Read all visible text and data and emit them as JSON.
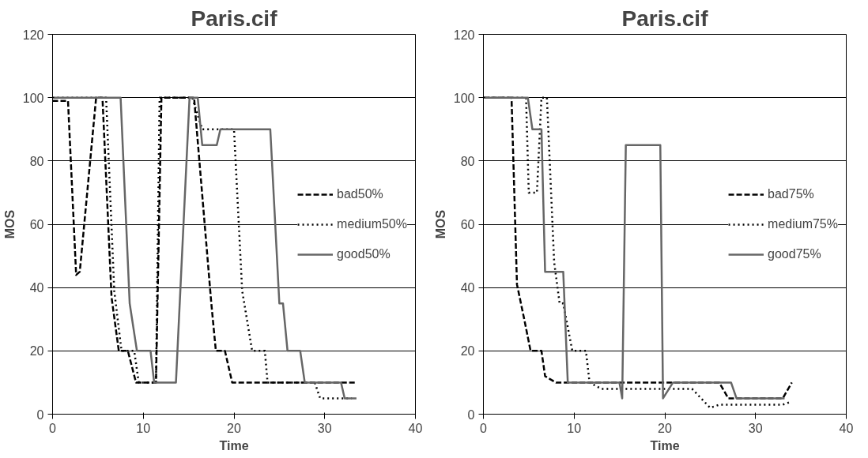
{
  "chart_data": [
    {
      "type": "line",
      "title": "Paris.cif",
      "xlabel": "Time",
      "ylabel": "MOS",
      "xlim": [
        0,
        40
      ],
      "ylim": [
        0,
        120
      ],
      "xticks": [
        0,
        10,
        20,
        30,
        40
      ],
      "yticks": [
        0,
        20,
        40,
        60,
        80,
        100,
        120
      ],
      "grid": "y",
      "legend": "right",
      "marker": "none",
      "series": [
        {
          "name": "bad50%",
          "color": "#000000",
          "line_style": "dashed",
          "x": [
            0,
            1.7,
            2.6,
            3.0,
            4.8,
            5.5,
            6.5,
            7.3,
            8.3,
            9.2,
            11.4,
            12.0,
            15.6,
            17.5,
            18.0,
            19.0,
            19.8,
            33.5
          ],
          "values": [
            99,
            99,
            44,
            45,
            100,
            100,
            37,
            20,
            20,
            10,
            10,
            100,
            100,
            35,
            20,
            20,
            10,
            10
          ]
        },
        {
          "name": "medium50%",
          "color": "#000000",
          "line_style": "dotted",
          "x": [
            0,
            5.9,
            6.8,
            7.6,
            9.0,
            9.5,
            11.4,
            11.8,
            15.4,
            16.5,
            20.0,
            20.9,
            22.0,
            23.4,
            23.7,
            28.9,
            29.5,
            33.0
          ],
          "values": [
            100,
            100,
            39,
            20,
            20,
            10,
            10,
            100,
            100,
            90,
            90,
            39,
            20,
            20,
            10,
            10,
            5,
            5
          ]
        },
        {
          "name": "good50%",
          "color": "#666666",
          "line_style": "solid",
          "x": [
            0,
            7.5,
            8.5,
            9.3,
            10.8,
            11.2,
            13.6,
            15.1,
            16.0,
            16.5,
            18.1,
            18.5,
            24.0,
            25.0,
            25.4,
            25.9,
            27.3,
            27.8,
            31.8,
            32.2,
            33.5
          ],
          "values": [
            100,
            100,
            35,
            20,
            20,
            10,
            10,
            100,
            100,
            85,
            85,
            90,
            90,
            35,
            35,
            20,
            20,
            10,
            10,
            5,
            5
          ]
        }
      ]
    },
    {
      "type": "line",
      "title": "Paris.cif",
      "xlabel": "Time",
      "ylabel": "MOS",
      "xlim": [
        0,
        40
      ],
      "ylim": [
        0,
        120
      ],
      "xticks": [
        0,
        10,
        20,
        30,
        40
      ],
      "yticks": [
        0,
        20,
        40,
        60,
        80,
        100,
        120
      ],
      "grid": "y",
      "legend": "right",
      "marker": "none",
      "series": [
        {
          "name": "bad75%",
          "color": "#000000",
          "line_style": "dashed",
          "x": [
            0,
            3.1,
            3.7,
            4.5,
            5.2,
            6.4,
            6.8,
            8.0,
            26.0,
            27.0,
            33.0,
            34.0
          ],
          "values": [
            100,
            100,
            41,
            30,
            20,
            20,
            12,
            10,
            10,
            5,
            5,
            10
          ]
        },
        {
          "name": "medium75%",
          "color": "#000000",
          "line_style": "dotted",
          "x": [
            0,
            4.7,
            5.0,
            5.9,
            6.4,
            7.0,
            7.8,
            8.4,
            8.8,
            9.8,
            11.3,
            11.7,
            13.0,
            23.0,
            24.0,
            25.0,
            26.0,
            33.0,
            34.0
          ],
          "values": [
            100,
            100,
            70,
            70,
            100,
            100,
            48,
            35,
            35,
            20,
            20,
            10,
            8,
            8,
            5,
            2,
            3,
            3,
            4
          ]
        },
        {
          "name": "good75%",
          "color": "#666666",
          "line_style": "solid",
          "x": [
            0,
            4.9,
            5.4,
            6.4,
            6.8,
            8.8,
            9.3,
            15.0,
            15.3,
            15.7,
            19.5,
            19.8,
            20.9,
            27.3,
            27.9,
            33.2
          ],
          "values": [
            100,
            100,
            90,
            90,
            45,
            45,
            10,
            10,
            5,
            85,
            85,
            5,
            10,
            10,
            5,
            5
          ]
        }
      ]
    }
  ]
}
